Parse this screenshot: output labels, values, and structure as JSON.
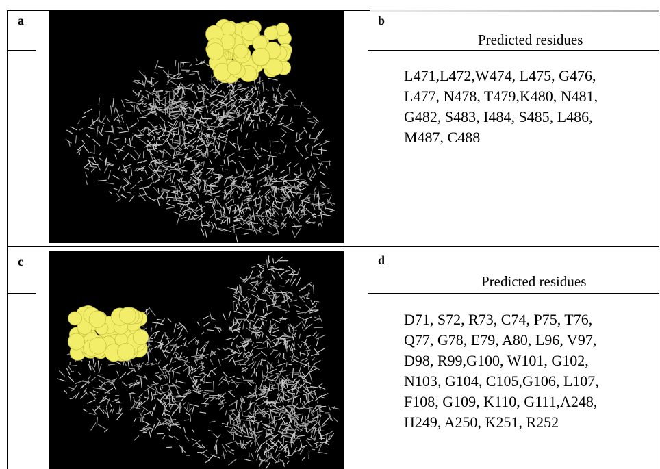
{
  "panels": [
    {
      "label": "a"
    },
    {
      "label": "b",
      "heading": "Predicted residues",
      "residues": [
        "L471,L472,W474, L475, G476,",
        "L477, N478, T479,K480, N481,",
        "G482, S483, I484, S485, L486,",
        "M487, C488"
      ]
    },
    {
      "label": "c"
    },
    {
      "label": "d",
      "heading": "Predicted residues",
      "residues": [
        "D71, S72, R73, C74, P75, T76,",
        "Q77, G78, E79, A80, L96, V97,",
        "D98, R99,G100, W101, G102,",
        "N103, G104, C105,G106, L107,",
        "F108, G109, K110, G111,A248,",
        " H249, A250, K251, R252"
      ]
    }
  ]
}
